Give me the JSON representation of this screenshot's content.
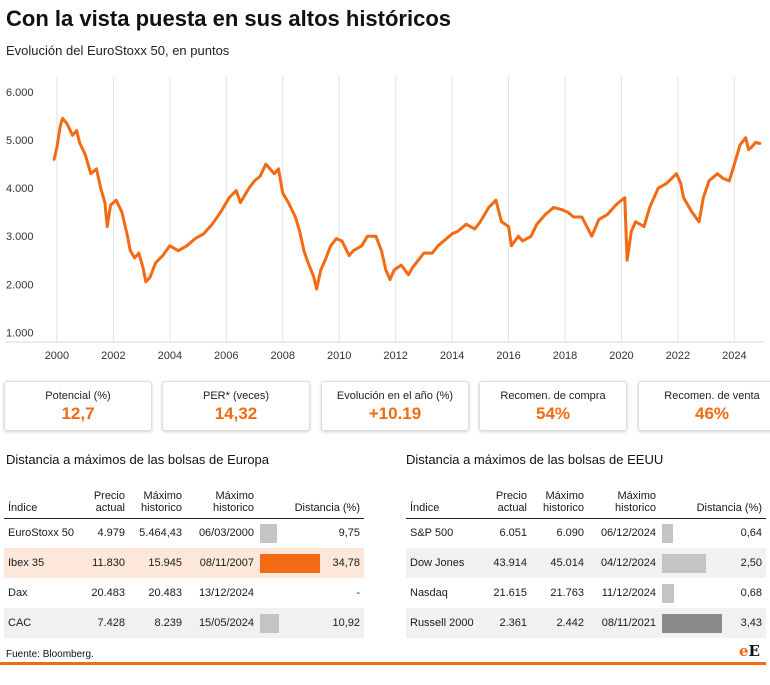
{
  "header": {
    "title": "Con la vista puesta en sus altos históricos",
    "subtitle": "Evolución del EuroStoxx 50, en puntos"
  },
  "chart_data": {
    "type": "line",
    "title": "Evolución del EuroStoxx 50, en puntos",
    "xlabel": "",
    "ylabel": "",
    "xlim": [
      1999.4,
      2025.05
    ],
    "ylim": [
      800,
      6000
    ],
    "yticks": [
      1000,
      2000,
      3000,
      4000,
      5000,
      6000
    ],
    "ytick_labels": [
      "1.000",
      "2.000",
      "3.000",
      "4.000",
      "5.000",
      "6.000"
    ],
    "xticks": [
      2000,
      2002,
      2004,
      2006,
      2008,
      2010,
      2012,
      2014,
      2016,
      2018,
      2020,
      2022,
      2024
    ],
    "xtick_labels": [
      "2000",
      "2002",
      "2004",
      "2006",
      "2008",
      "2010",
      "2012",
      "2014",
      "2016",
      "2018",
      "2020",
      "2022",
      "2024"
    ],
    "grid": "vertical",
    "color": "#f26a12",
    "series": [
      {
        "name": "EuroStoxx 50",
        "x": [
          1999.9,
          2000.0,
          2000.12,
          2000.2,
          2000.35,
          2000.55,
          2000.7,
          2000.8,
          2001.0,
          2001.2,
          2001.4,
          2001.55,
          2001.7,
          2001.78,
          2001.9,
          2002.1,
          2002.3,
          2002.5,
          2002.6,
          2002.75,
          2002.9,
          2003.05,
          2003.15,
          2003.3,
          2003.5,
          2003.75,
          2004.0,
          2004.3,
          2004.6,
          2004.9,
          2005.2,
          2005.5,
          2005.8,
          2006.1,
          2006.35,
          2006.5,
          2006.8,
          2007.0,
          2007.2,
          2007.4,
          2007.55,
          2007.7,
          2007.85,
          2008.0,
          2008.2,
          2008.45,
          2008.6,
          2008.75,
          2008.9,
          2009.1,
          2009.2,
          2009.35,
          2009.5,
          2009.7,
          2009.9,
          2010.1,
          2010.35,
          2010.5,
          2010.8,
          2011.0,
          2011.3,
          2011.5,
          2011.65,
          2011.8,
          2011.95,
          2012.2,
          2012.45,
          2012.6,
          2012.8,
          2013.0,
          2013.3,
          2013.5,
          2013.8,
          2014.0,
          2014.2,
          2014.5,
          2014.8,
          2015.0,
          2015.3,
          2015.55,
          2015.75,
          2016.0,
          2016.1,
          2016.35,
          2016.5,
          2016.8,
          2017.0,
          2017.3,
          2017.6,
          2017.9,
          2018.1,
          2018.3,
          2018.6,
          2018.95,
          2019.2,
          2019.5,
          2019.8,
          2020.0,
          2020.12,
          2020.2,
          2020.35,
          2020.5,
          2020.8,
          2021.0,
          2021.3,
          2021.6,
          2021.95,
          2022.1,
          2022.2,
          2022.5,
          2022.75,
          2022.9,
          2023.1,
          2023.4,
          2023.6,
          2023.82,
          2024.0,
          2024.2,
          2024.4,
          2024.5,
          2024.6,
          2024.75,
          2024.9
        ],
        "y": [
          4600,
          4850,
          5300,
          5450,
          5350,
          5100,
          5200,
          4950,
          4700,
          4300,
          4400,
          4000,
          3700,
          3200,
          3650,
          3750,
          3500,
          3000,
          2700,
          2550,
          2650,
          2350,
          2050,
          2150,
          2450,
          2600,
          2800,
          2700,
          2800,
          2950,
          3050,
          3250,
          3500,
          3800,
          3950,
          3700,
          4000,
          4150,
          4250,
          4500,
          4400,
          4300,
          4400,
          3900,
          3700,
          3400,
          3100,
          2700,
          2450,
          2150,
          1900,
          2300,
          2500,
          2800,
          2950,
          2900,
          2600,
          2700,
          2800,
          3000,
          3000,
          2700,
          2300,
          2100,
          2300,
          2400,
          2200,
          2350,
          2500,
          2650,
          2650,
          2800,
          2950,
          3050,
          3100,
          3250,
          3150,
          3300,
          3600,
          3750,
          3300,
          3200,
          2800,
          3000,
          2900,
          3000,
          3250,
          3450,
          3600,
          3550,
          3500,
          3400,
          3400,
          3000,
          3350,
          3450,
          3650,
          3750,
          3800,
          2500,
          3100,
          3300,
          3200,
          3600,
          4000,
          4100,
          4300,
          4100,
          3800,
          3500,
          3300,
          3800,
          4150,
          4300,
          4200,
          4150,
          4500,
          4900,
          5050,
          4800,
          4850,
          4950,
          4930
        ]
      }
    ]
  },
  "kpis": [
    {
      "label": "Potencial (%)",
      "value": "12,7"
    },
    {
      "label": "PER* (veces)",
      "value": "14,32"
    },
    {
      "label": "Evolución en el año (%)",
      "value": "+10.19"
    },
    {
      "label": "Recomen. de compra",
      "value": "54%"
    },
    {
      "label": "Recomen. de venta",
      "value": "46%"
    }
  ],
  "europe": {
    "title": "Distancia a máximos de las bolsas de Europa",
    "headers": [
      "Índice",
      "Precio actual",
      "Máximo historico",
      "Máximo historico",
      "Distancia (%)"
    ],
    "rows": [
      {
        "index": "EuroStoxx 50",
        "price": "4.979",
        "max": "5.464,43",
        "date": "06/03/2000",
        "dist": "9,75",
        "dist_value": 9.75
      },
      {
        "index": "Ibex 35",
        "price": "11.830",
        "max": "15.945",
        "date": "08/11/2007",
        "dist": "34,78",
        "dist_value": 34.78
      },
      {
        "index": "Dax",
        "price": "20.483",
        "max": "20.483",
        "date": "13/12/2024",
        "dist": "-",
        "dist_value": 0
      },
      {
        "index": "CAC",
        "price": "7.428",
        "max": "8.239",
        "date": "15/05/2024",
        "dist": "10,92",
        "dist_value": 10.92
      }
    ],
    "bar_max": 34.78
  },
  "usa": {
    "title": "Distancia a máximos de las bolsas de EEUU",
    "headers": [
      "Índice",
      "Precio actual",
      "Máximo historico",
      "Máximo historico",
      "Distancia (%)"
    ],
    "rows": [
      {
        "index": "S&P 500",
        "price": "6.051",
        "max": "6.090",
        "date": "06/12/2024",
        "dist": "0,64",
        "dist_value": 0.64
      },
      {
        "index": "Dow Jones",
        "price": "43.914",
        "max": "45.014",
        "date": "04/12/2024",
        "dist": "2,50",
        "dist_value": 2.5
      },
      {
        "index": "Nasdaq",
        "price": "21.615",
        "price2": "",
        "max": "21.763",
        "date": "11/12/2024",
        "dist": "0,68",
        "dist_value": 0.68
      },
      {
        "index": "Russell 2000",
        "price": "2.361",
        "max": "2.442",
        "date": "08/11/2021",
        "dist": "3,43",
        "dist_value": 3.43
      }
    ],
    "bar_max": 3.43
  },
  "colors": {
    "accent": "#f26a12",
    "bar_default": "#c4c4c4",
    "bar_highlight": "#f26a12",
    "bar_max_usa": "#8a8a8a",
    "row_highlight": "#fde6da"
  },
  "footer": {
    "source": "Fuente: Bloomberg.",
    "logo_e1": "e",
    "logo_e2": "E"
  }
}
